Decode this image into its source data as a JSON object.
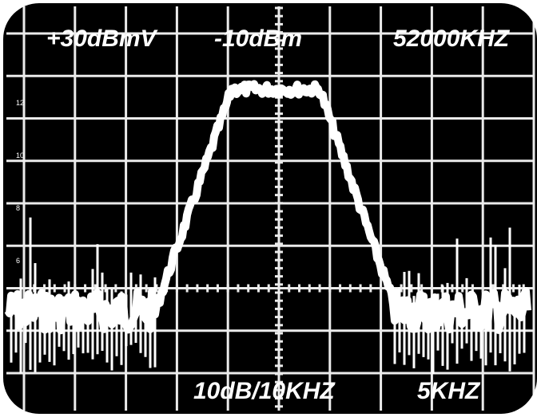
{
  "screen": {
    "top_left": "+30dBmV",
    "top_center": "-10dBm",
    "top_right": "52000KHZ",
    "bottom_center": "10dB/10KHZ",
    "bottom_right": "5KHZ",
    "scale_labels": [
      "12",
      "10",
      "8",
      "6"
    ]
  }
}
